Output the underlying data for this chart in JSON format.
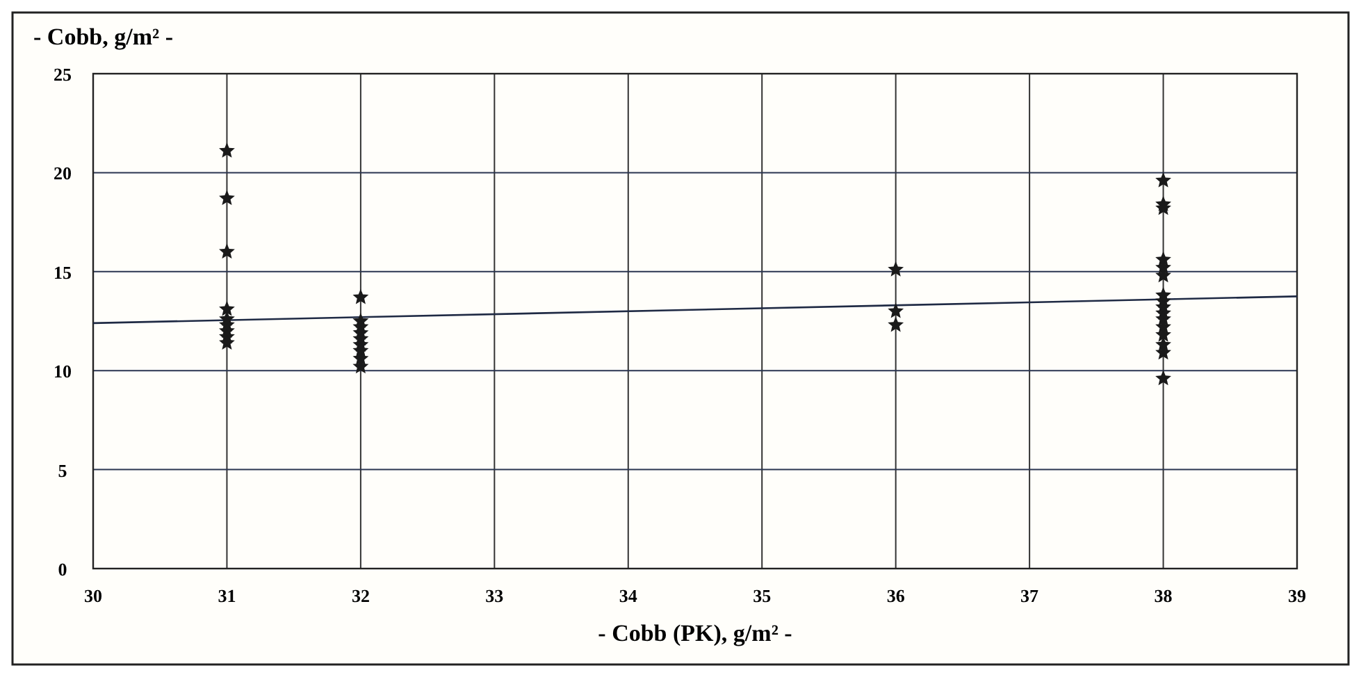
{
  "chart_data": {
    "type": "scatter",
    "ylabel": "- Cobb, g/m² -",
    "xlabel": "- Cobb (PK), g/m² -",
    "xlim": [
      30,
      39
    ],
    "xticks": [
      30,
      31,
      32,
      33,
      34,
      35,
      36,
      37,
      38,
      39
    ],
    "ylim": [
      0,
      25
    ],
    "yticks": [
      0,
      5,
      10,
      15,
      20,
      25
    ],
    "grid": true,
    "marker": "star",
    "series": [
      {
        "color": "#1a1a1a",
        "x": [
          31,
          31,
          31,
          31,
          31,
          31,
          31,
          31,
          31,
          32,
          32,
          32,
          32,
          32,
          32,
          32,
          32,
          32,
          36,
          36,
          36,
          38,
          38,
          38,
          38,
          38,
          38,
          38,
          38,
          38,
          38,
          38,
          38,
          38,
          38,
          38,
          38
        ],
        "values": [
          21.1,
          18.7,
          16.0,
          13.1,
          12.6,
          12.3,
          12.0,
          11.7,
          11.4,
          13.7,
          12.5,
          12.2,
          11.9,
          11.6,
          11.3,
          11.0,
          10.6,
          10.2,
          15.1,
          13.0,
          12.3,
          19.6,
          18.4,
          18.2,
          15.6,
          15.2,
          14.8,
          13.8,
          13.5,
          13.2,
          12.9,
          12.6,
          12.2,
          11.8,
          11.3,
          10.9,
          9.6
        ]
      },
      {
        "type": "line",
        "color": "#1f2a44",
        "marker": "none",
        "x": [
          30,
          39
        ],
        "values": [
          12.4,
          13.75
        ]
      }
    ]
  }
}
